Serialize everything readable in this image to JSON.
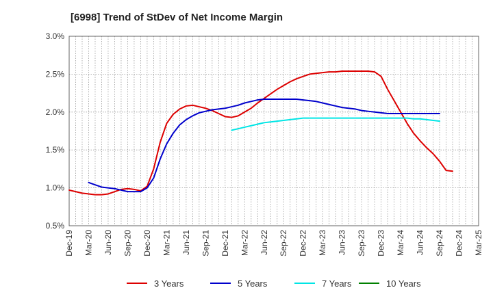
{
  "chart_data": {
    "type": "line",
    "title": "[6998]  Trend of StDev of Net Income Margin",
    "xlabel": "",
    "ylabel": "",
    "ylim": [
      0.5,
      3.0
    ],
    "y_unit": "%",
    "y_ticks": [
      "0.5%",
      "1.0%",
      "1.5%",
      "2.0%",
      "2.5%",
      "3.0%"
    ],
    "x_ticks": [
      "Dec-19",
      "Mar-20",
      "Jun-20",
      "Sep-20",
      "Dec-20",
      "Mar-21",
      "Jun-21",
      "Sep-21",
      "Dec-21",
      "Mar-22",
      "Jun-22",
      "Sep-22",
      "Dec-22",
      "Mar-23",
      "Jun-23",
      "Sep-23",
      "Dec-23",
      "Mar-24",
      "Jun-24",
      "Sep-24",
      "Dec-24",
      "Mar-25"
    ],
    "grid": true,
    "legend": "bottom",
    "series": [
      {
        "name": "3 Years",
        "color": "#dd0000",
        "values": [
          0.97,
          0.95,
          0.93,
          0.92,
          0.91,
          0.91,
          0.92,
          0.95,
          0.98,
          0.99,
          0.98,
          0.96,
          1.02,
          1.25,
          1.6,
          1.85,
          1.97,
          2.04,
          2.08,
          2.09,
          2.07,
          2.05,
          2.02,
          1.98,
          1.94,
          1.93,
          1.95,
          2.0,
          2.05,
          2.12,
          2.18,
          2.24,
          2.3,
          2.35,
          2.4,
          2.44,
          2.47,
          2.5,
          2.51,
          2.52,
          2.53,
          2.53,
          2.54,
          2.54,
          2.54,
          2.54,
          2.54,
          2.53,
          2.47,
          2.3,
          2.15,
          2.0,
          1.85,
          1.72,
          1.62,
          1.53,
          1.45,
          1.35,
          1.23,
          1.22
        ]
      },
      {
        "name": "5 Years",
        "color": "#0000cc",
        "values": [
          null,
          null,
          null,
          1.07,
          1.04,
          1.01,
          1.0,
          0.99,
          0.97,
          0.95,
          0.95,
          0.95,
          1.0,
          1.13,
          1.38,
          1.58,
          1.72,
          1.83,
          1.9,
          1.95,
          1.99,
          2.01,
          2.03,
          2.04,
          2.05,
          2.07,
          2.09,
          2.12,
          2.14,
          2.16,
          2.17,
          2.17,
          2.17,
          2.17,
          2.17,
          2.17,
          2.16,
          2.15,
          2.14,
          2.12,
          2.1,
          2.08,
          2.06,
          2.05,
          2.04,
          2.02,
          2.01,
          2.0,
          1.99,
          1.98,
          1.98,
          1.98,
          1.98,
          1.98,
          1.98,
          1.98,
          1.98,
          1.98
        ]
      },
      {
        "name": "7 Years",
        "color": "#00e5e5",
        "values": [
          null,
          null,
          null,
          null,
          null,
          null,
          null,
          null,
          null,
          null,
          null,
          null,
          null,
          null,
          null,
          null,
          null,
          null,
          null,
          null,
          null,
          null,
          null,
          null,
          null,
          1.76,
          1.78,
          1.8,
          1.82,
          1.84,
          1.86,
          1.87,
          1.88,
          1.89,
          1.9,
          1.91,
          1.92,
          1.92,
          1.92,
          1.92,
          1.92,
          1.92,
          1.92,
          1.92,
          1.92,
          1.92,
          1.92,
          1.92,
          1.92,
          1.92,
          1.92,
          1.92,
          1.92,
          1.91,
          1.91,
          1.9,
          1.89,
          1.88
        ]
      },
      {
        "name": "10 Years",
        "color": "#008000",
        "values": []
      }
    ]
  }
}
